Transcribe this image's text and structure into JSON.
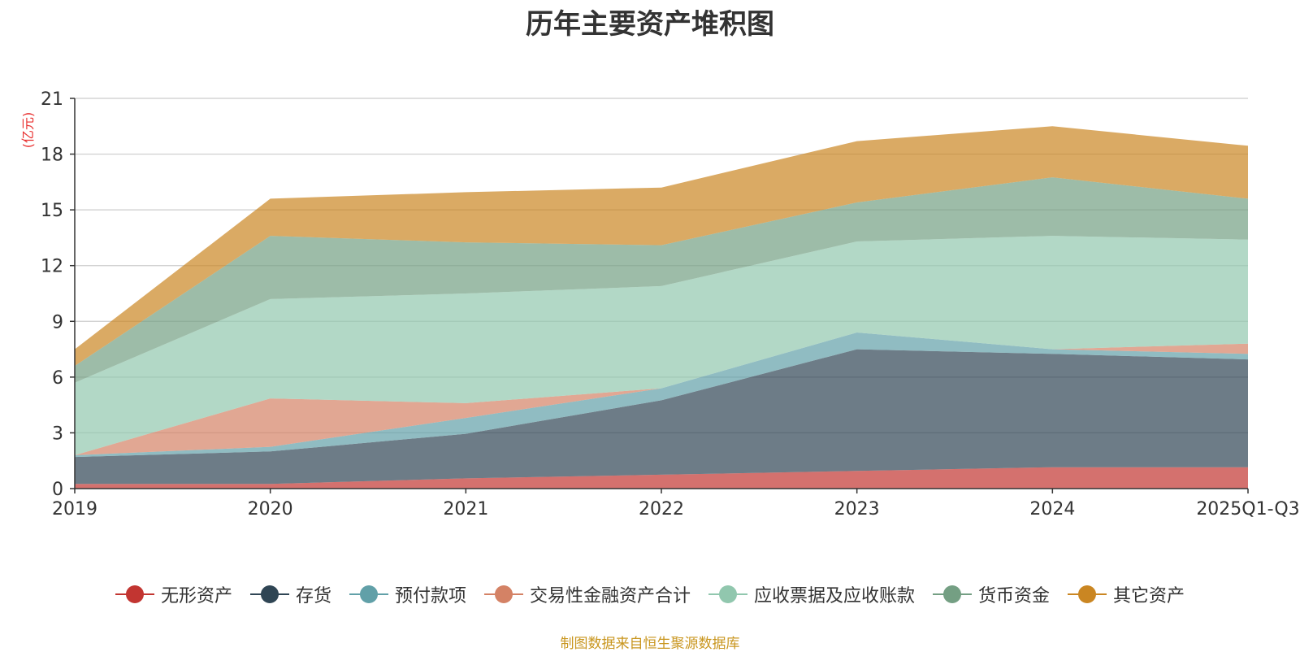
{
  "chart_data": {
    "type": "area",
    "stacked": true,
    "title": "历年主要资产堆积图",
    "unit_label": "(亿元)",
    "source_note": "制图数据来自恒生聚源数据库",
    "categories": [
      "2019",
      "2020",
      "2021",
      "2022",
      "2023",
      "2024",
      "2025Q1-Q3"
    ],
    "yticks": [
      0,
      3,
      6,
      9,
      12,
      15,
      18,
      21
    ],
    "ylim": [
      0,
      21
    ],
    "grid": true,
    "legend_position": "bottom",
    "series": [
      {
        "name": "无形资产",
        "color": "#c23531",
        "values": [
          0.25,
          0.25,
          0.55,
          0.75,
          0.95,
          1.15,
          1.15
        ]
      },
      {
        "name": "存货",
        "color": "#2f4554",
        "values": [
          1.45,
          1.75,
          2.4,
          4.0,
          6.55,
          6.1,
          5.8
        ]
      },
      {
        "name": "预付款项",
        "color": "#61a0a8",
        "values": [
          0.1,
          0.25,
          0.85,
          0.65,
          0.9,
          0.25,
          0.3
        ]
      },
      {
        "name": "交易性金融资产合计",
        "color": "#d48265",
        "values": [
          0.0,
          2.6,
          0.8,
          0.0,
          0.0,
          0.0,
          0.55
        ]
      },
      {
        "name": "应收票据及应收账款",
        "color": "#91c7ae",
        "values": [
          3.9,
          5.35,
          5.9,
          5.5,
          4.9,
          6.1,
          5.6
        ]
      },
      {
        "name": "货币资金",
        "color": "#749f83",
        "values": [
          0.9,
          3.4,
          2.75,
          2.2,
          2.1,
          3.15,
          2.2
        ]
      },
      {
        "name": "其它资产",
        "color": "#ca8622",
        "values": [
          0.9,
          2.0,
          2.7,
          3.1,
          3.3,
          2.75,
          2.85
        ]
      }
    ]
  }
}
